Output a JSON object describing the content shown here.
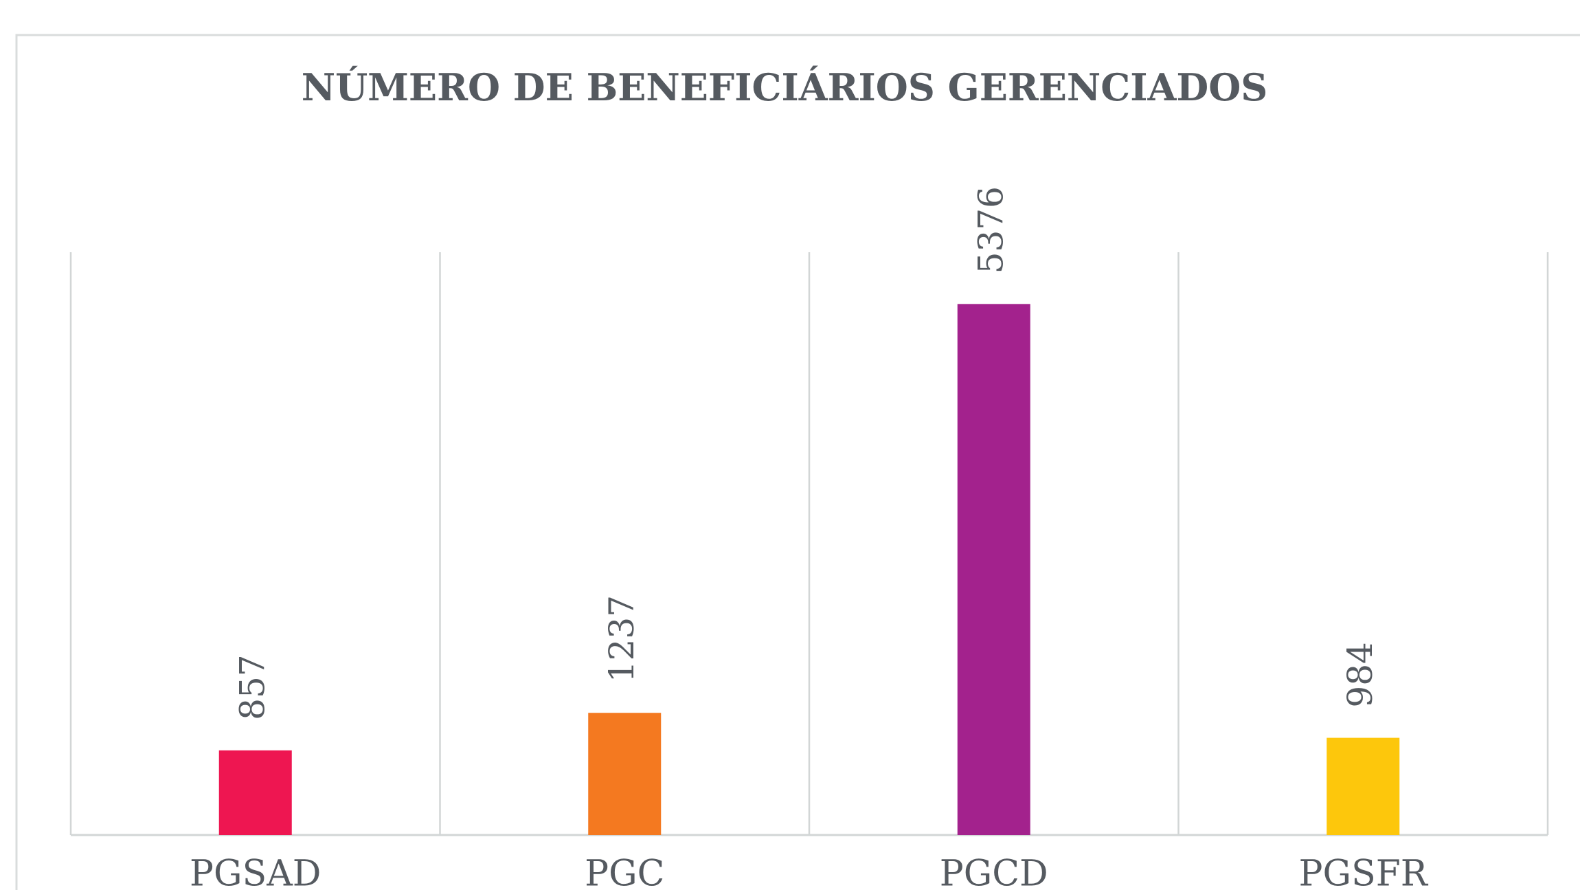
{
  "chart_data": {
    "type": "bar",
    "title": "NÚMERO DE BENEFICIÁRIOS GERENCIADOS",
    "categories": [
      "PGSAD",
      "PGC",
      "PGCD",
      "PGSFR"
    ],
    "values": [
      857,
      1237,
      5376,
      984
    ],
    "colors": [
      "#ee1651",
      "#f47920",
      "#a3228d",
      "#fdc70c"
    ],
    "ylim": [
      0,
      5900
    ]
  }
}
